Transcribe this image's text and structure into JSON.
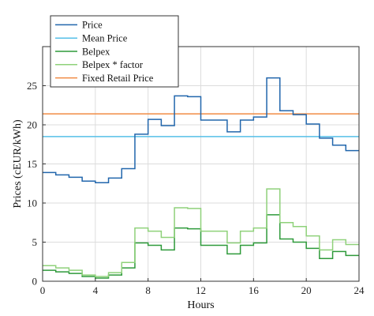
{
  "chart_data": {
    "type": "line",
    "step": true,
    "xlabel": "Hours",
    "ylabel": "Prices (cEUR/kWh)",
    "xlim": [
      0,
      24
    ],
    "ylim": [
      0,
      30
    ],
    "xticks": [
      0,
      4,
      8,
      12,
      16,
      20,
      24
    ],
    "yticks": [
      0,
      5,
      10,
      15,
      20,
      25
    ],
    "grid": true,
    "legend_position": "top-left",
    "series": [
      {
        "name": "Price",
        "color": "#2166ac",
        "values": [
          13.9,
          13.6,
          13.3,
          12.8,
          12.6,
          13.2,
          14.4,
          18.8,
          20.7,
          19.9,
          23.7,
          23.6,
          20.6,
          20.6,
          19.1,
          20.6,
          21.0,
          26.0,
          21.8,
          21.3,
          20.1,
          18.3,
          17.4,
          16.7
        ]
      },
      {
        "name": "Mean Price",
        "color": "#56bfe8",
        "constant": 18.5
      },
      {
        "name": "Belpex",
        "color": "#2e9a3a",
        "values": [
          1.4,
          1.2,
          1.0,
          0.6,
          0.4,
          0.8,
          1.7,
          4.9,
          4.6,
          4.0,
          6.8,
          6.7,
          4.6,
          4.6,
          3.5,
          4.6,
          4.9,
          8.5,
          5.4,
          5.0,
          4.2,
          2.9,
          3.8,
          3.3
        ]
      },
      {
        "name": "Belpex * factor",
        "color": "#8fd17a",
        "values": [
          2.0,
          1.7,
          1.4,
          0.8,
          0.6,
          1.1,
          2.4,
          6.8,
          6.4,
          5.6,
          9.4,
          9.3,
          6.4,
          6.4,
          4.9,
          6.4,
          6.8,
          11.8,
          7.5,
          7.0,
          5.8,
          4.0,
          5.3,
          4.7
        ]
      },
      {
        "name": "Fixed Retail Price",
        "color": "#f08c45",
        "constant": 21.4
      }
    ]
  }
}
